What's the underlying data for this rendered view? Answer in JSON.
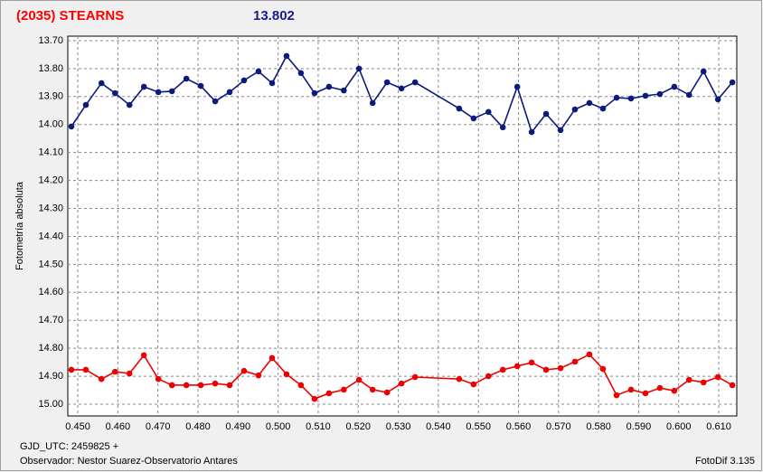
{
  "chart_data": {
    "type": "line",
    "title": "(2035) STEARNS",
    "subtitle": "13.802",
    "y_label": "Fotometría absoluta",
    "x_label": "GJD_UTC: 2459825 +",
    "observer": "Observador: Nestor Suarez-Observatorio Antares",
    "software": "FotoDif 3.135",
    "title_color": "#ff0000",
    "subtitle_color": "#1a1a8c",
    "y_inverted": true,
    "grid": true,
    "xlim": [
      0.4475,
      0.6145
    ],
    "ylim": [
      13.684,
      15.042
    ],
    "xticks": [
      {
        "value": 0.45,
        "label": "0.450"
      },
      {
        "value": 0.46,
        "label": "0.460"
      },
      {
        "value": 0.47,
        "label": "0.470"
      },
      {
        "value": 0.48,
        "label": "0.480"
      },
      {
        "value": 0.49,
        "label": "0.490"
      },
      {
        "value": 0.5,
        "label": "0.500"
      },
      {
        "value": 0.51,
        "label": "0.510"
      },
      {
        "value": 0.52,
        "label": "0.520"
      },
      {
        "value": 0.53,
        "label": "0.530"
      },
      {
        "value": 0.54,
        "label": "0.540"
      },
      {
        "value": 0.55,
        "label": "0.550"
      },
      {
        "value": 0.56,
        "label": "0.560"
      },
      {
        "value": 0.57,
        "label": "0.570"
      },
      {
        "value": 0.58,
        "label": "0.580"
      },
      {
        "value": 0.59,
        "label": "0.590"
      },
      {
        "value": 0.6,
        "label": "0.600"
      },
      {
        "value": 0.61,
        "label": "0.610"
      }
    ],
    "yticks": [
      {
        "value": 13.7,
        "label": "13.70"
      },
      {
        "value": 13.8,
        "label": "13.80"
      },
      {
        "value": 13.9,
        "label": "13.90"
      },
      {
        "value": 14.0,
        "label": "14.00"
      },
      {
        "value": 14.1,
        "label": "14.10"
      },
      {
        "value": 14.2,
        "label": "14.20"
      },
      {
        "value": 14.3,
        "label": "14.30"
      },
      {
        "value": 14.4,
        "label": "14.40"
      },
      {
        "value": 14.5,
        "label": "14.50"
      },
      {
        "value": 14.6,
        "label": "14.60"
      },
      {
        "value": 14.7,
        "label": "14.70"
      },
      {
        "value": 14.8,
        "label": "14.80"
      },
      {
        "value": 14.9,
        "label": "14.90"
      },
      {
        "value": 15.0,
        "label": "15.00"
      }
    ],
    "x": [
      0.4484,
      0.452,
      0.4559,
      0.4593,
      0.4629,
      0.4665,
      0.4701,
      0.4735,
      0.4771,
      0.4807,
      0.4843,
      0.4879,
      0.4915,
      0.4951,
      0.4985,
      0.5021,
      0.5057,
      0.5091,
      0.5127,
      0.5164,
      0.5202,
      0.5236,
      0.5272,
      0.5308,
      0.5342,
      0.5452,
      0.5488,
      0.5525,
      0.5561,
      0.5597,
      0.5633,
      0.5669,
      0.5705,
      0.5741,
      0.5777,
      0.5811,
      0.5845,
      0.5881,
      0.5917,
      0.5953,
      0.5989,
      0.6026,
      0.6062,
      0.6098,
      0.6134
    ],
    "series": [
      {
        "color": "#0c1a7c",
        "values": [
          14.007,
          13.93,
          13.852,
          13.888,
          13.93,
          13.865,
          13.884,
          13.881,
          13.836,
          13.862,
          13.917,
          13.884,
          13.842,
          13.81,
          13.852,
          13.755,
          13.816,
          13.888,
          13.865,
          13.878,
          13.8,
          13.923,
          13.849,
          13.871,
          13.849,
          13.943,
          13.978,
          13.955,
          14.01,
          13.865,
          14.027,
          13.962,
          14.02,
          13.946,
          13.923,
          13.943,
          13.904,
          13.907,
          13.897,
          13.891,
          13.865,
          13.894,
          13.81,
          13.91,
          13.849
        ]
      },
      {
        "color": "#ee0000",
        "values": [
          14.877,
          14.877,
          14.91,
          14.884,
          14.89,
          14.825,
          14.91,
          14.932,
          14.932,
          14.932,
          14.926,
          14.932,
          14.881,
          14.897,
          14.835,
          14.893,
          14.932,
          14.981,
          14.961,
          14.948,
          14.913,
          14.948,
          14.958,
          14.926,
          14.903,
          14.91,
          14.929,
          14.9,
          14.877,
          14.864,
          14.851,
          14.877,
          14.871,
          14.848,
          14.822,
          14.874,
          14.968,
          14.948,
          14.961,
          14.942,
          14.952,
          14.913,
          14.922,
          14.903,
          14.932
        ]
      }
    ]
  }
}
